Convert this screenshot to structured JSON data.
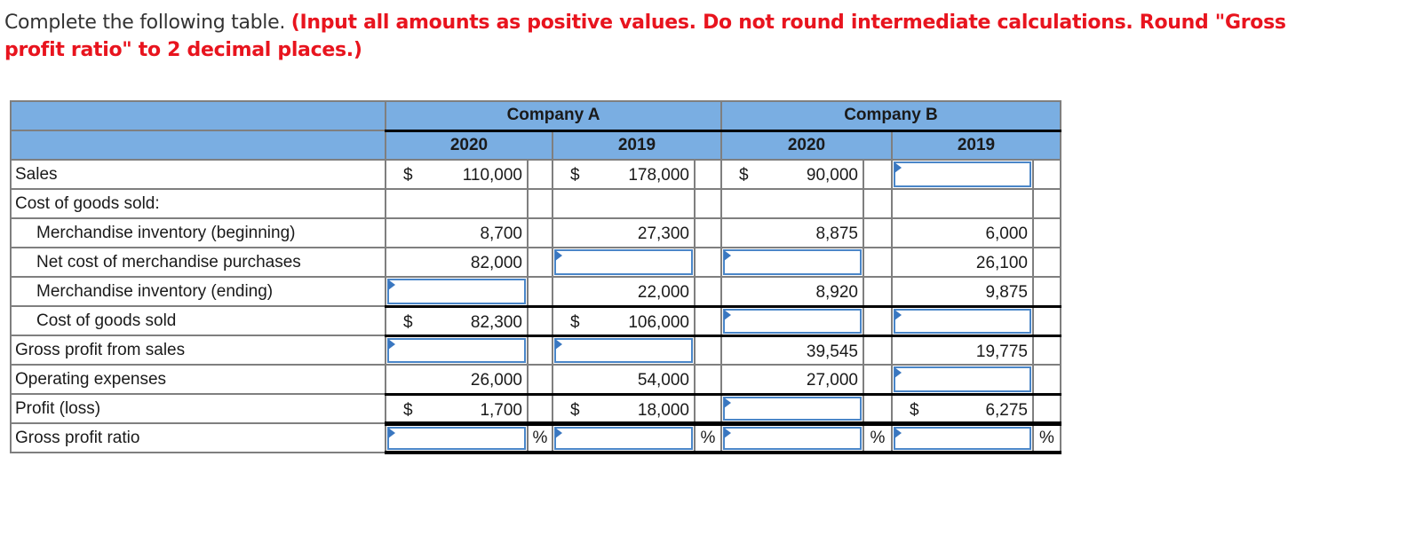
{
  "instructions": {
    "lead": "Complete the following table.",
    "note": "(Input all amounts as positive values. Do not round intermediate calculations. Round \"Gross profit ratio\" to 2 decimal places.)"
  },
  "table": {
    "companies": [
      "Company A",
      "Company B"
    ],
    "years": [
      "2020",
      "2019",
      "2020",
      "2019"
    ],
    "rows": [
      {
        "label": "Sales",
        "indent": false,
        "cells": [
          {
            "currency": "$",
            "value": "110,000"
          },
          {
            "currency": "$",
            "value": "178,000"
          },
          {
            "currency": "$",
            "value": "90,000"
          },
          {
            "input": true,
            "value": ""
          }
        ]
      },
      {
        "label": "Cost of goods sold:",
        "indent": false,
        "cells": [
          {},
          {},
          {},
          {}
        ]
      },
      {
        "label": "Merchandise inventory (beginning)",
        "indent": true,
        "cells": [
          {
            "value": "8,700"
          },
          {
            "value": "27,300"
          },
          {
            "value": "8,875"
          },
          {
            "value": "6,000"
          }
        ]
      },
      {
        "label": "Net cost of merchandise purchases",
        "indent": true,
        "cells": [
          {
            "value": "82,000"
          },
          {
            "input": true,
            "value": ""
          },
          {
            "input": true,
            "value": ""
          },
          {
            "value": "26,100"
          }
        ]
      },
      {
        "label": "Merchandise inventory (ending)",
        "indent": true,
        "cells": [
          {
            "input": true,
            "value": ""
          },
          {
            "value": "22,000"
          },
          {
            "value": "8,920"
          },
          {
            "value": "9,875"
          }
        ]
      },
      {
        "label": "Cost of goods sold",
        "indent": true,
        "cells": [
          {
            "currency": "$",
            "value": "82,300"
          },
          {
            "currency": "$",
            "value": "106,000"
          },
          {
            "input": true,
            "value": ""
          },
          {
            "input": true,
            "value": ""
          }
        ]
      },
      {
        "label": "Gross profit from sales",
        "indent": false,
        "cells": [
          {
            "input": true,
            "value": ""
          },
          {
            "input": true,
            "value": ""
          },
          {
            "value": "39,545"
          },
          {
            "value": "19,775"
          }
        ]
      },
      {
        "label": "Operating expenses",
        "indent": false,
        "cells": [
          {
            "value": "26,000"
          },
          {
            "value": "54,000"
          },
          {
            "value": "27,000"
          },
          {
            "input": true,
            "value": ""
          }
        ]
      },
      {
        "label": "Profit (loss)",
        "indent": false,
        "cells": [
          {
            "currency": "$",
            "value": "1,700"
          },
          {
            "currency": "$",
            "value": "18,000"
          },
          {
            "input": true,
            "value": ""
          },
          {
            "currency": "$",
            "value": "6,275"
          }
        ]
      },
      {
        "label": "Gross profit ratio",
        "indent": false,
        "cells": [
          {
            "input": true,
            "value": "",
            "suffix": "%"
          },
          {
            "input": true,
            "value": "",
            "suffix": "%"
          },
          {
            "input": true,
            "value": "",
            "suffix": "%"
          },
          {
            "input": true,
            "value": "",
            "suffix": "%"
          }
        ]
      }
    ]
  },
  "colors": {
    "header_bg": "#7aaee2",
    "instruction_red": "#e8141e",
    "input_border": "#4a86c8"
  }
}
